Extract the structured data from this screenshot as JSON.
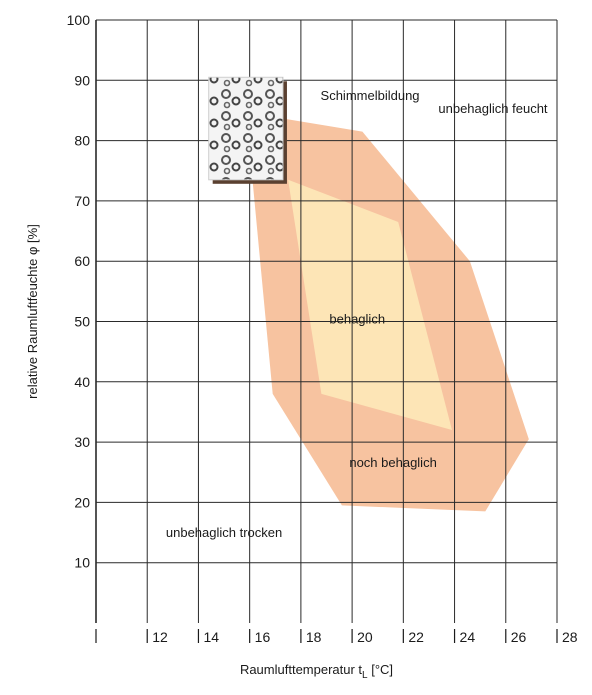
{
  "chart_data": {
    "type": "area",
    "xlabel": "Raumlufttemperatur t",
    "xlabel_sub": "L",
    "xlabel_unit": " [°C]",
    "ylabel": "relative Raumluftfeuchte  φ [%]",
    "xlim": [
      10,
      28
    ],
    "ylim": [
      0,
      100
    ],
    "x_ticks": [
      "12",
      "14",
      "16",
      "18",
      "20",
      "22",
      "24",
      "26",
      "28"
    ],
    "y_ticks": [
      "10",
      "20",
      "30",
      "40",
      "50",
      "60",
      "70",
      "80",
      "90",
      "100"
    ],
    "grid": true,
    "regions": [
      {
        "name": "noch behaglich",
        "color": "#f7c3a0",
        "polygon": [
          [
            16.1,
            84.5
          ],
          [
            20.4,
            81.5
          ],
          [
            24.6,
            60
          ],
          [
            26.9,
            30.5
          ],
          [
            25.2,
            18.5
          ],
          [
            19.6,
            19.5
          ],
          [
            16.9,
            38
          ],
          [
            16.1,
            74
          ]
        ]
      },
      {
        "name": "behaglich",
        "color": "#fde5b6",
        "polygon": [
          [
            17.5,
            73.5
          ],
          [
            21.8,
            66.5
          ],
          [
            23.9,
            32
          ],
          [
            18.8,
            38
          ]
        ]
      }
    ],
    "annotations": [
      {
        "text": "Schimmelbildung",
        "x": 20.7,
        "y": 86.7
      },
      {
        "text": "unbehaglich feucht",
        "x": 25.5,
        "y": 84.6
      },
      {
        "text": "behaglich",
        "x": 20.2,
        "y": 49.7
      },
      {
        "text": "noch behaglich",
        "x": 21.6,
        "y": 25.9
      },
      {
        "text": "unbehaglich trocken",
        "x": 15.0,
        "y": 14.3
      }
    ],
    "mold_image": {
      "x1": 14.4,
      "y1": 90.5,
      "x2": 17.3,
      "y2": 73.5
    }
  }
}
